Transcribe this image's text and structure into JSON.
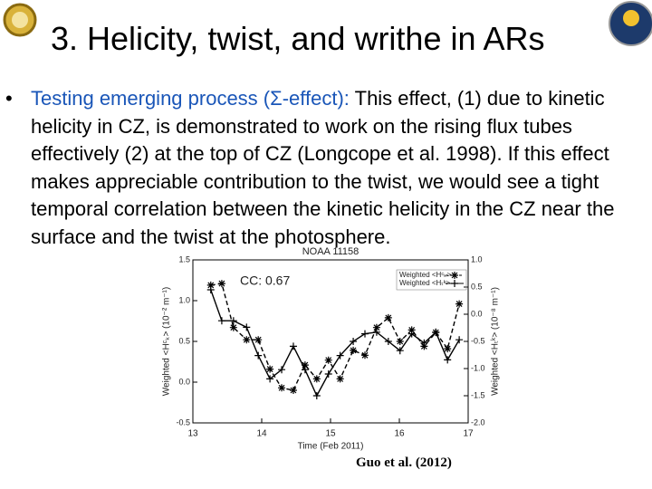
{
  "slide": {
    "title": "3. Helicity, twist, and writhe in ARs",
    "bullet": {
      "label": "Testing emerging process (Σ-effect):",
      "text": "This effect, (1) due to kinetic helicity in CZ, is demonstrated to work on the rising flux tubes effectively (2) at the top of CZ (Longcope et al. 1998). If this effect makes appreciable contribution to the twist, we would see a tight temporal correlation between the kinetic helicity in the CZ near the surface and the twist at the photosphere."
    },
    "caption": "Guo et al. (2012)"
  },
  "chart_data": {
    "type": "line",
    "title": "NOAA 11158",
    "annotation": "CC: 0.67",
    "x_label": "Time (Feb 2011)",
    "y_label": "Weighted <Hᶜₖ> (10⁻² m⁻¹)",
    "y2_label": "Weighted <Hₜᵏ> (10⁻⁸ m⁻¹)",
    "xlim": [
      13,
      17
    ],
    "xticks": [
      13,
      14,
      15,
      16,
      17
    ],
    "ylim": [
      -0.5,
      1.5
    ],
    "yticks": [
      -0.5,
      {
        "value": 0,
        "label": "0.0"
      },
      0.5,
      {
        "value": 1,
        "label": "1.0"
      },
      1.5
    ],
    "y2lim": [
      -2,
      1
    ],
    "y2ticks": [
      {
        "value": 1,
        "label": "1.0"
      },
      0.5,
      {
        "value": 0,
        "label": "0.0"
      },
      -0.5,
      {
        "value": -1,
        "label": "-1.0"
      },
      -1.5,
      {
        "value": -2,
        "label": "-2.0"
      }
    ],
    "x": [
      13.26,
      13.42,
      13.59,
      13.78,
      13.95,
      14.12,
      14.29,
      14.46,
      14.63,
      14.8,
      14.97,
      15.14,
      15.33,
      15.5,
      15.67,
      15.84,
      16.01,
      16.18,
      16.36,
      16.53,
      16.7,
      16.87
    ],
    "series": [
      {
        "name": "Weighted <Hᶜₖ>",
        "color": "#000000",
        "line_style": "dashed",
        "marker": "asterisk",
        "values": [
          1.19,
          1.21,
          0.67,
          0.52,
          0.52,
          0.16,
          -0.07,
          -0.1,
          0.21,
          0.04,
          0.27,
          0.04,
          0.39,
          0.33,
          0.67,
          0.79,
          0.5,
          0.64,
          0.44,
          0.61,
          0.41,
          0.96
        ]
      },
      {
        "name": "Weighted <Hₜᵏ>",
        "color": "#000000",
        "line_style": "solid",
        "marker": "plus",
        "axis": "y2",
        "values": [
          0.45,
          -0.12,
          -0.12,
          -0.24,
          -0.76,
          -1.19,
          -1.02,
          -0.59,
          -1.02,
          -1.5,
          -1.1,
          -0.76,
          -0.5,
          -0.36,
          -0.33,
          -0.5,
          -0.67,
          -0.36,
          -0.53,
          -0.33,
          -0.84,
          -0.47
        ]
      }
    ]
  }
}
